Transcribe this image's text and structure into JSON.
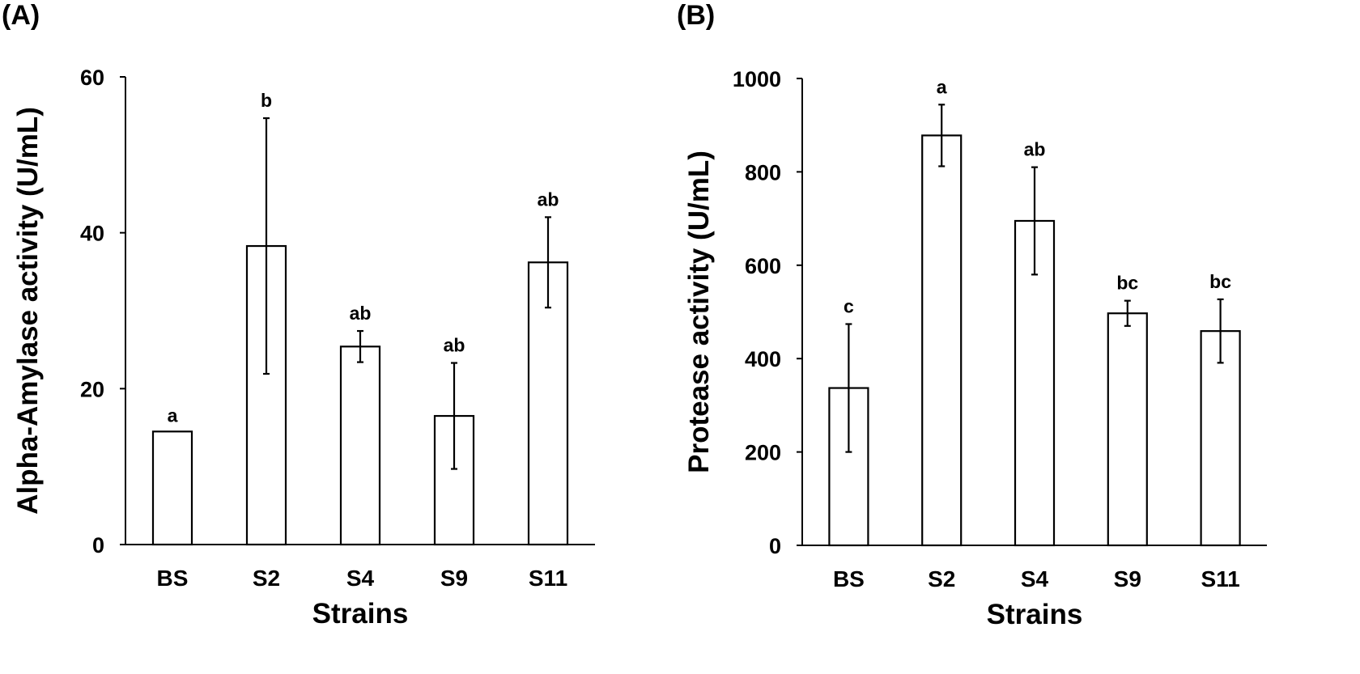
{
  "chart_data": [
    {
      "type": "bar",
      "panel_label": "(A)",
      "title": "",
      "xlabel": "Strains",
      "ylabel": "Alpha-Amylase activity (U/mL)",
      "ylim": [
        0,
        60
      ],
      "yticks": [
        0,
        20,
        40,
        60
      ],
      "categories": [
        "BS",
        "S2",
        "S4",
        "S9",
        "S11"
      ],
      "values": [
        14.5,
        38.3,
        25.4,
        16.5,
        36.2
      ],
      "errors": [
        0,
        16.4,
        2.0,
        6.8,
        5.8
      ],
      "significance": [
        "a",
        "b",
        "ab",
        "ab",
        "ab"
      ],
      "grid": false,
      "bar_color": "#ffffff",
      "edge_color": "#000000"
    },
    {
      "type": "bar",
      "panel_label": "(B)",
      "title": "",
      "xlabel": "Strains",
      "ylabel": "Protease activity (U/mL)",
      "ylim": [
        0,
        1000
      ],
      "yticks": [
        0,
        200,
        400,
        600,
        800,
        1000
      ],
      "categories": [
        "BS",
        "S2",
        "S4",
        "S9",
        "S11"
      ],
      "values": [
        337,
        878,
        695,
        497,
        459
      ],
      "errors": [
        137,
        66,
        115,
        27,
        68
      ],
      "significance": [
        "c",
        "a",
        "ab",
        "bc",
        "bc"
      ],
      "grid": false,
      "bar_color": "#ffffff",
      "edge_color": "#000000"
    }
  ]
}
